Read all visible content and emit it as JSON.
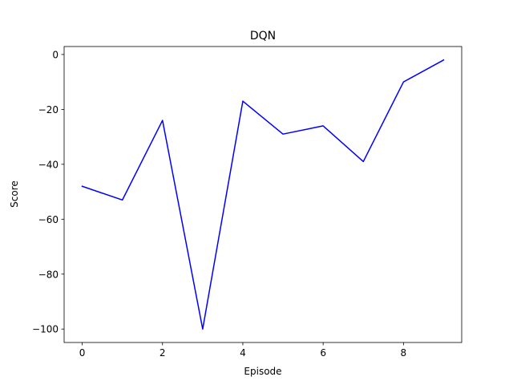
{
  "chart_data": {
    "type": "line",
    "title": "DQN",
    "xlabel": "Episode",
    "ylabel": "Score",
    "x": [
      0,
      1,
      2,
      3,
      4,
      5,
      6,
      7,
      8,
      9
    ],
    "series": [
      {
        "color": "#0000ff",
        "values": [
          -48,
          -53,
          -24,
          -100,
          -17,
          -29,
          -26,
          -39,
          -10,
          -2
        ]
      }
    ],
    "xlim": [
      -0.45,
      9.45
    ],
    "ylim": [
      -104.9,
      2.9
    ],
    "x_ticks": [
      0,
      2,
      4,
      6,
      8
    ],
    "x_tick_labels": [
      "0",
      "2",
      "4",
      "6",
      "8"
    ],
    "y_ticks": [
      0,
      -20,
      -40,
      -60,
      -80,
      -100
    ],
    "y_tick_labels": [
      "0",
      "−20",
      "−40",
      "−60",
      "−80",
      "−100"
    ],
    "grid": false,
    "legend": "none"
  }
}
